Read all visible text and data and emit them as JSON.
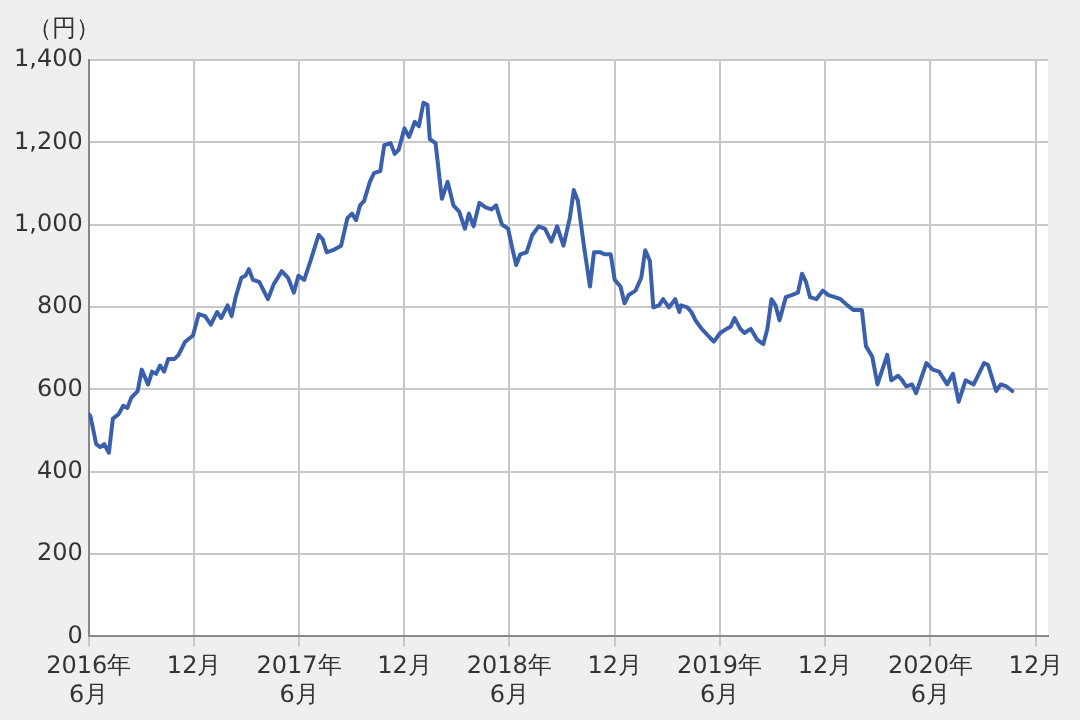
{
  "chart_data": {
    "type": "line",
    "ylabel": "（円）",
    "x": [
      "2016-06-01",
      "2016-06-04",
      "2016-06-14",
      "2016-06-21",
      "2016-06-28",
      "2016-07-06",
      "2016-07-13",
      "2016-07-23",
      "2016-07-31",
      "2016-08-07",
      "2016-08-14",
      "2016-08-25",
      "2016-09-01",
      "2016-09-12",
      "2016-09-19",
      "2016-09-26",
      "2016-10-03",
      "2016-10-10",
      "2016-10-17",
      "2016-10-28",
      "2016-11-04",
      "2016-11-15",
      "2016-11-29",
      "2016-12-09",
      "2016-12-20",
      "2016-12-30",
      "2017-01-10",
      "2017-01-17",
      "2017-01-28",
      "2017-02-04",
      "2017-02-11",
      "2017-02-21",
      "2017-02-28",
      "2017-03-06",
      "2017-03-13",
      "2017-03-24",
      "2017-04-08",
      "2017-04-18",
      "2017-05-02",
      "2017-05-13",
      "2017-05-23",
      "2017-05-31",
      "2017-06-10",
      "2017-06-21",
      "2017-07-05",
      "2017-07-12",
      "2017-07-19",
      "2017-07-30",
      "2017-08-13",
      "2017-08-24",
      "2017-09-01",
      "2017-09-08",
      "2017-09-15",
      "2017-09-22",
      "2017-10-02",
      "2017-10-09",
      "2017-10-20",
      "2017-10-27",
      "2017-11-07",
      "2017-11-14",
      "2017-11-21",
      "2017-12-01",
      "2017-12-09",
      "2017-12-19",
      "2017-12-26",
      "2018-01-03",
      "2018-01-10",
      "2018-01-14",
      "2018-01-24",
      "2018-02-04",
      "2018-02-14",
      "2018-02-24",
      "2018-03-06",
      "2018-03-16",
      "2018-03-23",
      "2018-03-31",
      "2018-04-10",
      "2018-04-21",
      "2018-05-01",
      "2018-05-09",
      "2018-05-19",
      "2018-05-30",
      "2018-06-06",
      "2018-06-13",
      "2018-06-20",
      "2018-07-01",
      "2018-07-11",
      "2018-07-22",
      "2018-08-02",
      "2018-08-13",
      "2018-08-23",
      "2018-09-03",
      "2018-09-14",
      "2018-09-21",
      "2018-09-28",
      "2018-10-09",
      "2018-10-19",
      "2018-10-26",
      "2018-11-06",
      "2018-11-13",
      "2018-11-24",
      "2018-12-01",
      "2018-12-11",
      "2018-12-18",
      "2018-12-25",
      "2019-01-06",
      "2019-01-16",
      "2019-01-23",
      "2019-01-31",
      "2019-02-06",
      "2019-02-16",
      "2019-02-23",
      "2019-03-05",
      "2019-03-16",
      "2019-03-23",
      "2019-03-26",
      "2019-04-06",
      "2019-04-13",
      "2019-04-20",
      "2019-05-01",
      "2019-05-15",
      "2019-05-22",
      "2019-06-02",
      "2019-06-13",
      "2019-06-20",
      "2019-06-27",
      "2019-07-07",
      "2019-07-14",
      "2019-07-25",
      "2019-08-05",
      "2019-08-16",
      "2019-08-23",
      "2019-08-30",
      "2019-09-06",
      "2019-09-13",
      "2019-09-24",
      "2019-10-04",
      "2019-10-15",
      "2019-10-22",
      "2019-10-29",
      "2019-11-05",
      "2019-11-16",
      "2019-11-27",
      "2019-12-07",
      "2019-12-18",
      "2019-12-28",
      "2020-01-09",
      "2020-01-19",
      "2020-02-03",
      "2020-02-10",
      "2020-02-21",
      "2020-03-01",
      "2020-03-18",
      "2020-03-25",
      "2020-04-06",
      "2020-04-13",
      "2020-04-20",
      "2020-04-30",
      "2020-05-07",
      "2020-05-25",
      "2020-06-05",
      "2020-06-16",
      "2020-06-30",
      "2020-07-10",
      "2020-07-20",
      "2020-08-01",
      "2020-08-15",
      "2020-09-02",
      "2020-09-09",
      "2020-09-23",
      "2020-10-01",
      "2020-10-11",
      "2020-10-21"
    ],
    "series": [
      {
        "color": "#3a5fad",
        "values": [
          540,
          535,
          467,
          460,
          467,
          446,
          529,
          540,
          560,
          555,
          580,
          596,
          648,
          612,
          643,
          638,
          658,
          643,
          674,
          674,
          684,
          715,
          731,
          783,
          778,
          757,
          788,
          773,
          804,
          778,
          824,
          871,
          876,
          892,
          866,
          861,
          819,
          855,
          887,
          871,
          835,
          876,
          866,
          912,
          975,
          965,
          933,
          938,
          949,
          1016,
          1027,
          1011,
          1047,
          1058,
          1104,
          1125,
          1130,
          1193,
          1198,
          1172,
          1182,
          1234,
          1213,
          1250,
          1239,
          1296,
          1291,
          1208,
          1198,
          1063,
          1104,
          1047,
          1032,
          990,
          1027,
          996,
          1053,
          1042,
          1037,
          1047,
          1001,
          990,
          944,
          902,
          928,
          933,
          975,
          996,
          990,
          959,
          996,
          949,
          1016,
          1084,
          1058,
          944,
          850,
          933,
          933,
          928,
          928,
          866,
          850,
          809,
          829,
          840,
          871,
          938,
          912,
          799,
          804,
          819,
          799,
          819,
          788,
          804,
          799,
          788,
          768,
          747,
          726,
          716,
          737,
          747,
          752,
          773,
          747,
          737,
          747,
          721,
          710,
          747,
          819,
          804,
          768,
          824,
          829,
          835,
          881,
          861,
          824,
          819,
          840,
          829,
          824,
          819,
          804,
          793,
          793,
          705,
          679,
          612,
          684,
          622,
          633,
          622,
          607,
          612,
          591,
          664,
          648,
          643,
          612,
          638,
          570,
          622,
          612,
          664,
          659,
          596,
          612,
          607,
          596
        ]
      }
    ],
    "xlim": [
      "2016-06-01",
      "2020-12-22"
    ],
    "xticks": [
      {
        "value": "2016-06",
        "label": "2016年\n6月"
      },
      {
        "value": "2016-12",
        "label": "12月"
      },
      {
        "value": "2017-06",
        "label": "2017年\n6月"
      },
      {
        "value": "2017-12",
        "label": "12月"
      },
      {
        "value": "2018-06",
        "label": "2018年\n6月"
      },
      {
        "value": "2018-12",
        "label": "12月"
      },
      {
        "value": "2019-06",
        "label": "2019年\n6月"
      },
      {
        "value": "2019-12",
        "label": "12月"
      },
      {
        "value": "2020-06",
        "label": "2020年\n6月"
      },
      {
        "value": "2020-12",
        "label": "12月"
      }
    ],
    "ylim": [
      0,
      1400
    ],
    "yticks": [
      0,
      200,
      400,
      600,
      800,
      {
        "value": 1000,
        "label": "1,000"
      },
      {
        "value": 1200,
        "label": "1,200"
      },
      {
        "value": 1400,
        "label": "1,400"
      }
    ],
    "grid": true,
    "marker": "none",
    "line_style": "solid",
    "legend": false
  }
}
